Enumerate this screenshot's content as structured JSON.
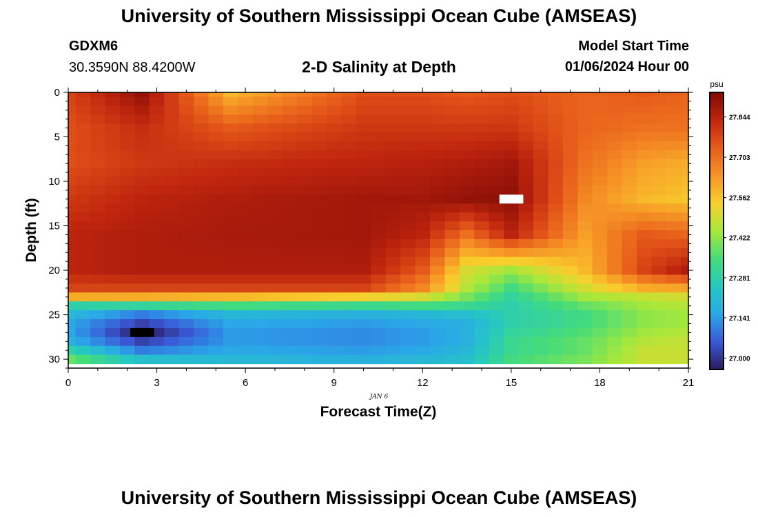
{
  "page": {
    "title_top": "University of Southern Mississippi Ocean Cube (AMSEAS)",
    "title_bottom": "University of Southern Mississippi Ocean Cube (AMSEAS)",
    "station": "GDXM6",
    "coords": "30.3590N  88.4200W",
    "plot_title": "2-D Salinity at Depth",
    "model_start_label": "Model Start Time",
    "model_start_value": "01/06/2024 Hour 00"
  },
  "chart_data": {
    "type": "heatmap",
    "title": "2-D Salinity at Depth",
    "xlabel": "Forecast Time(Z)",
    "ylabel": "Depth (ft)",
    "date_label": "JAN 6",
    "xlim": [
      0,
      21
    ],
    "ylim": [
      0,
      31
    ],
    "x_ticks": [
      0,
      3,
      6,
      9,
      12,
      15,
      18,
      21
    ],
    "y_ticks": [
      0,
      5,
      10,
      15,
      20,
      25,
      30
    ],
    "colorbar": {
      "unit": "psu",
      "min": 26.96,
      "max": 27.93,
      "ticks": [
        "27.000",
        "27.141",
        "27.281",
        "27.422",
        "27.562",
        "27.703",
        "27.844"
      ],
      "colors": [
        "#2a1a5e",
        "#3a5ad8",
        "#2aa7e8",
        "#25c9c0",
        "#45dc7a",
        "#a8e83a",
        "#f8d02c",
        "#f69426",
        "#e75c1a",
        "#c0260e",
        "#800a05"
      ]
    },
    "depth_rows": [
      0,
      1,
      2,
      3,
      4,
      5,
      6,
      7,
      8,
      9,
      10,
      11,
      12,
      13,
      14,
      15,
      16,
      17,
      18,
      19,
      20,
      21,
      22,
      23,
      24,
      25,
      26,
      27,
      28,
      29,
      30
    ],
    "time_columns_hours": [
      0,
      0.5,
      1,
      1.5,
      2,
      2.5,
      3,
      3.5,
      4,
      4.5,
      5,
      5.5,
      6,
      6.5,
      7,
      7.5,
      8,
      8.5,
      9,
      9.5,
      10,
      10.5,
      11,
      11.5,
      12,
      12.5,
      13,
      13.5,
      14,
      14.5,
      15,
      15.5,
      16,
      16.5,
      17,
      17.5,
      18,
      18.5,
      19,
      19.5,
      20,
      20.5,
      21
    ],
    "salinity_profiles_psu": [
      {
        "hour": 0,
        "depth_ft": [
          0,
          4,
          8,
          12,
          16,
          20,
          22,
          23,
          24,
          25,
          26,
          27,
          28,
          29,
          30
        ],
        "psu": [
          27.78,
          27.76,
          27.76,
          27.8,
          27.84,
          27.84,
          27.78,
          27.6,
          27.28,
          27.2,
          27.16,
          27.16,
          27.18,
          27.28,
          27.38
        ]
      },
      {
        "hour": 2.5,
        "depth_ft": [
          0,
          4,
          8,
          12,
          16,
          20,
          22,
          23,
          24,
          25,
          26,
          27,
          28,
          29,
          30
        ],
        "psu": [
          27.9,
          27.82,
          27.8,
          27.84,
          27.86,
          27.86,
          27.78,
          27.6,
          27.3,
          27.1,
          27.02,
          26.96,
          27.02,
          27.1,
          27.22
        ]
      },
      {
        "hour": 5.5,
        "depth_ft": [
          0,
          4,
          8,
          12,
          16,
          20,
          22,
          23,
          24,
          25,
          26,
          27,
          28,
          29,
          30
        ],
        "psu": [
          27.58,
          27.74,
          27.82,
          27.86,
          27.87,
          27.86,
          27.78,
          27.58,
          27.34,
          27.2,
          27.16,
          27.14,
          27.14,
          27.16,
          27.2
        ]
      },
      {
        "hour": 10,
        "depth_ft": [
          0,
          4,
          8,
          12,
          16,
          20,
          22,
          23,
          24,
          25,
          26,
          27,
          28,
          29,
          30
        ],
        "psu": [
          27.76,
          27.8,
          27.84,
          27.88,
          27.88,
          27.86,
          27.78,
          27.54,
          27.32,
          27.18,
          27.14,
          27.12,
          27.12,
          27.14,
          27.18
        ]
      },
      {
        "hour": 12,
        "depth_ft": [
          0,
          4,
          8,
          12,
          16,
          20,
          22,
          23,
          24,
          25,
          26,
          27,
          28,
          29,
          30
        ],
        "psu": [
          27.76,
          27.8,
          27.85,
          27.88,
          27.84,
          27.74,
          27.66,
          27.5,
          27.34,
          27.2,
          27.16,
          27.14,
          27.14,
          27.16,
          27.2
        ]
      },
      {
        "hour": 13.5,
        "depth_ft": [
          0,
          4,
          8,
          12,
          16,
          20,
          22,
          23,
          24,
          25,
          26,
          27,
          28,
          29,
          30
        ],
        "psu": [
          27.74,
          27.8,
          27.86,
          27.9,
          27.7,
          27.5,
          27.46,
          27.4,
          27.32,
          27.22,
          27.18,
          27.18,
          27.18,
          27.2,
          27.22
        ]
      },
      {
        "hour": 15,
        "depth_ft": [
          0,
          4,
          8,
          12,
          16,
          20,
          22,
          23,
          24,
          25,
          26,
          27,
          28,
          29,
          30
        ],
        "psu": [
          27.76,
          27.8,
          27.88,
          27.91,
          27.84,
          27.44,
          27.34,
          27.3,
          27.28,
          27.28,
          27.28,
          27.3,
          27.32,
          27.32,
          27.34
        ]
      },
      {
        "hour": 17.5,
        "depth_ft": [
          0,
          4,
          8,
          12,
          16,
          20,
          22,
          23,
          24,
          25,
          26,
          27,
          28,
          29,
          30
        ],
        "psu": [
          27.72,
          27.72,
          27.7,
          27.66,
          27.62,
          27.58,
          27.5,
          27.44,
          27.38,
          27.34,
          27.34,
          27.36,
          27.38,
          27.38,
          27.4
        ]
      },
      {
        "hour": 19.5,
        "depth_ft": [
          0,
          4,
          8,
          12,
          16,
          20,
          22,
          23,
          24,
          25,
          26,
          27,
          28,
          29,
          30
        ],
        "psu": [
          27.74,
          27.7,
          27.62,
          27.58,
          27.74,
          27.78,
          27.6,
          27.48,
          27.44,
          27.42,
          27.42,
          27.44,
          27.46,
          27.48,
          27.48
        ]
      },
      {
        "hour": 21,
        "depth_ft": [
          0,
          4,
          8,
          12,
          16,
          20,
          22,
          23,
          24,
          25,
          26,
          27,
          28,
          29,
          30
        ],
        "psu": [
          27.72,
          27.7,
          27.6,
          27.56,
          27.72,
          27.86,
          27.62,
          27.5,
          27.46,
          27.44,
          27.44,
          27.46,
          27.48,
          27.48,
          27.48
        ]
      }
    ],
    "point_markers": [
      {
        "label": "max",
        "hour": 15,
        "depth_ft": 12,
        "color": "#ffffff"
      },
      {
        "label": "min",
        "hour": 2.5,
        "depth_ft": 27,
        "color": "#000000"
      }
    ]
  }
}
